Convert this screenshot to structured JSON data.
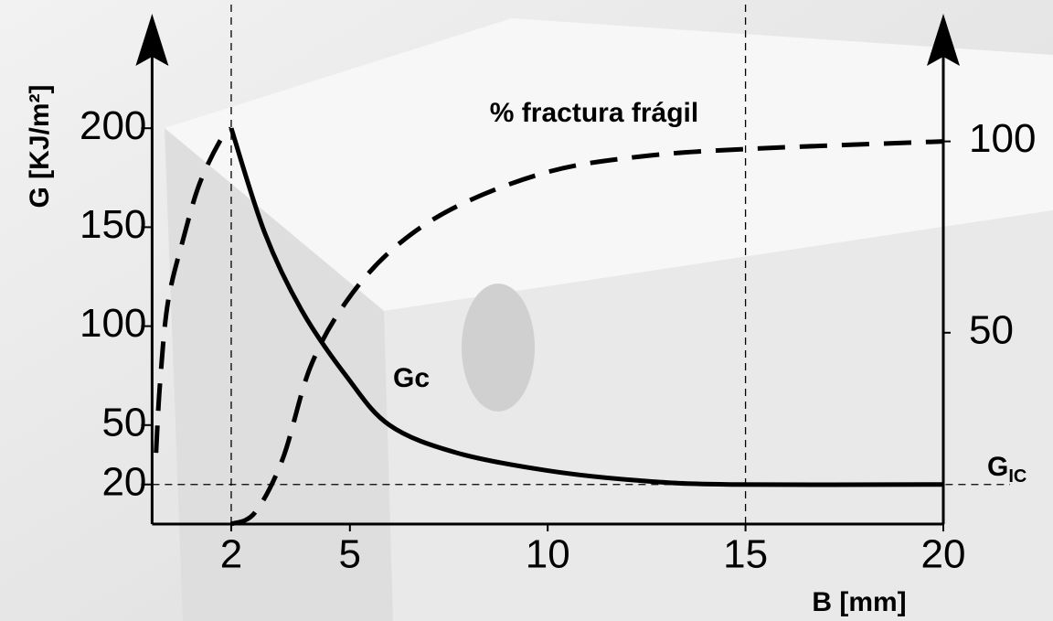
{
  "chart_data": {
    "type": "line",
    "xlabel": "B [mm]",
    "ylabel": "G [KJ/m²]",
    "xlim": [
      0,
      20
    ],
    "xticks": [
      2,
      5,
      10,
      15,
      20
    ],
    "ylim": [
      0,
      250
    ],
    "yticks": [
      20,
      50,
      100,
      150,
      200
    ],
    "y2lim": [
      0,
      125
    ],
    "y2ticks": [
      50,
      100
    ],
    "reference_lines": {
      "x": [
        2,
        15
      ],
      "y": [
        20
      ]
    },
    "annotations": {
      "fracture": "% fractura frágil",
      "gc": "Gc",
      "gic": {
        "text": "G",
        "subscript": "IC"
      }
    },
    "series": [
      {
        "name": "Gc",
        "color": "#000000",
        "dash": false,
        "x": [
          2,
          2.85,
          3.78,
          4.9,
          6.0,
          7.7,
          10,
          12.3,
          14.6,
          20
        ],
        "values": [
          200,
          147,
          108,
          75,
          50,
          36,
          27,
          22,
          20,
          20
        ]
      },
      {
        "color": "#000000",
        "dash": true,
        "x": [
          0.1,
          0.2,
          0.4,
          0.8,
          1.2,
          1.7,
          2
        ],
        "values": [
          36,
          71,
          112,
          145,
          172,
          193,
          200
        ]
      },
      {
        "color": "#000000",
        "dash": true,
        "axis": "y2",
        "x": [
          2,
          2.6,
          3.3,
          4,
          4.9,
          6.1,
          7.7,
          10,
          12.3,
          15,
          20
        ],
        "values": [
          0,
          3,
          17,
          41,
          58,
          72,
          83,
          92,
          96,
          98,
          100
        ]
      }
    ]
  }
}
